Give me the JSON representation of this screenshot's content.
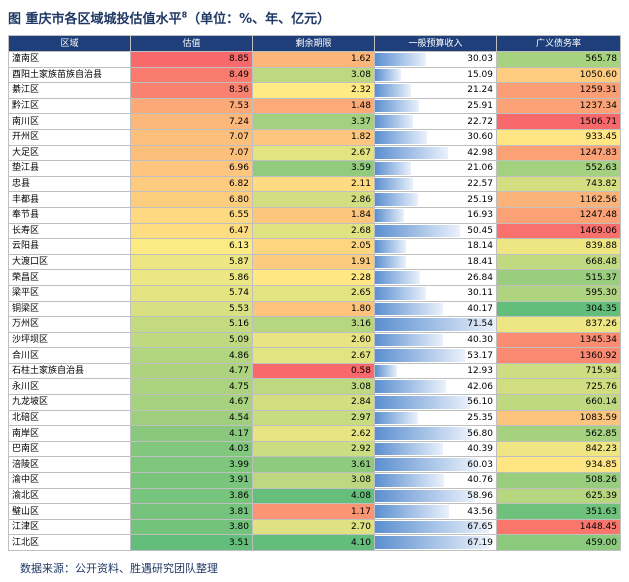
{
  "title": {
    "prefix": "图",
    "text": "重庆市各区域城投估值水平",
    "sup": "8",
    "unit": "（单位：%、年、亿元）"
  },
  "columns": [
    "区域",
    "估值",
    "剩余期限",
    "一般预算收入",
    "广义债务率"
  ],
  "rows": [
    {
      "name": "潼南区",
      "valuation": "8.85",
      "term": "1.62",
      "revenue": "30.03",
      "debt": "565.78"
    },
    {
      "name": "酉阳土家族苗族自治县",
      "valuation": "8.49",
      "term": "3.08",
      "revenue": "15.09",
      "debt": "1050.60"
    },
    {
      "name": "綦江区",
      "valuation": "8.36",
      "term": "2.32",
      "revenue": "21.24",
      "debt": "1259.31"
    },
    {
      "name": "黔江区",
      "valuation": "7.53",
      "term": "1.48",
      "revenue": "25.91",
      "debt": "1237.34"
    },
    {
      "name": "南川区",
      "valuation": "7.24",
      "term": "3.37",
      "revenue": "22.72",
      "debt": "1506.71"
    },
    {
      "name": "开州区",
      "valuation": "7.07",
      "term": "1.82",
      "revenue": "30.60",
      "debt": "933.45"
    },
    {
      "name": "大足区",
      "valuation": "7.07",
      "term": "2.67",
      "revenue": "42.98",
      "debt": "1247.83"
    },
    {
      "name": "垫江县",
      "valuation": "6.96",
      "term": "3.59",
      "revenue": "21.06",
      "debt": "552.63"
    },
    {
      "name": "忠县",
      "valuation": "6.82",
      "term": "2.11",
      "revenue": "22.57",
      "debt": "743.82"
    },
    {
      "name": "丰都县",
      "valuation": "6.80",
      "term": "2.86",
      "revenue": "25.19",
      "debt": "1162.56"
    },
    {
      "name": "奉节县",
      "valuation": "6.55",
      "term": "1.84",
      "revenue": "16.93",
      "debt": "1247.48"
    },
    {
      "name": "长寿区",
      "valuation": "6.47",
      "term": "2.68",
      "revenue": "50.45",
      "debt": "1469.06"
    },
    {
      "name": "云阳县",
      "valuation": "6.13",
      "term": "2.05",
      "revenue": "18.14",
      "debt": "839.88"
    },
    {
      "name": "大渡口区",
      "valuation": "5.87",
      "term": "1.91",
      "revenue": "18.41",
      "debt": "668.48"
    },
    {
      "name": "荣昌区",
      "valuation": "5.86",
      "term": "2.28",
      "revenue": "26.84",
      "debt": "515.37"
    },
    {
      "name": "梁平区",
      "valuation": "5.74",
      "term": "2.65",
      "revenue": "30.11",
      "debt": "595.30"
    },
    {
      "name": "铜梁区",
      "valuation": "5.53",
      "term": "1.80",
      "revenue": "40.17",
      "debt": "304.35"
    },
    {
      "name": "万州区",
      "valuation": "5.16",
      "term": "3.16",
      "revenue": "71.54",
      "debt": "837.26"
    },
    {
      "name": "沙坪坝区",
      "valuation": "5.09",
      "term": "2.60",
      "revenue": "40.30",
      "debt": "1345.34"
    },
    {
      "name": "合川区",
      "valuation": "4.86",
      "term": "2.67",
      "revenue": "53.17",
      "debt": "1360.92"
    },
    {
      "name": "石柱土家族自治县",
      "valuation": "4.77",
      "term": "0.58",
      "revenue": "12.93",
      "debt": "715.94"
    },
    {
      "name": "永川区",
      "valuation": "4.75",
      "term": "3.08",
      "revenue": "42.06",
      "debt": "725.76"
    },
    {
      "name": "九龙坡区",
      "valuation": "4.67",
      "term": "2.84",
      "revenue": "56.10",
      "debt": "660.14"
    },
    {
      "name": "北碚区",
      "valuation": "4.54",
      "term": "2.97",
      "revenue": "25.35",
      "debt": "1083.59"
    },
    {
      "name": "南岸区",
      "valuation": "4.17",
      "term": "2.62",
      "revenue": "56.80",
      "debt": "562.85"
    },
    {
      "name": "巴南区",
      "valuation": "4.03",
      "term": "2.92",
      "revenue": "40.39",
      "debt": "842.23"
    },
    {
      "name": "涪陵区",
      "valuation": "3.99",
      "term": "3.61",
      "revenue": "60.03",
      "debt": "934.85"
    },
    {
      "name": "渝中区",
      "valuation": "3.91",
      "term": "3.08",
      "revenue": "40.76",
      "debt": "508.26"
    },
    {
      "name": "渝北区",
      "valuation": "3.86",
      "term": "4.08",
      "revenue": "58.96",
      "debt": "625.39"
    },
    {
      "name": "璧山区",
      "valuation": "3.81",
      "term": "1.17",
      "revenue": "43.56",
      "debt": "351.63"
    },
    {
      "name": "江津区",
      "valuation": "3.80",
      "term": "2.70",
      "revenue": "67.65",
      "debt": "1448.45"
    },
    {
      "name": "江北区",
      "valuation": "3.51",
      "term": "4.10",
      "revenue": "67.19",
      "debt": "459.00"
    }
  ],
  "source": "数据来源：公开资料、胜遇研究团队整理"
}
